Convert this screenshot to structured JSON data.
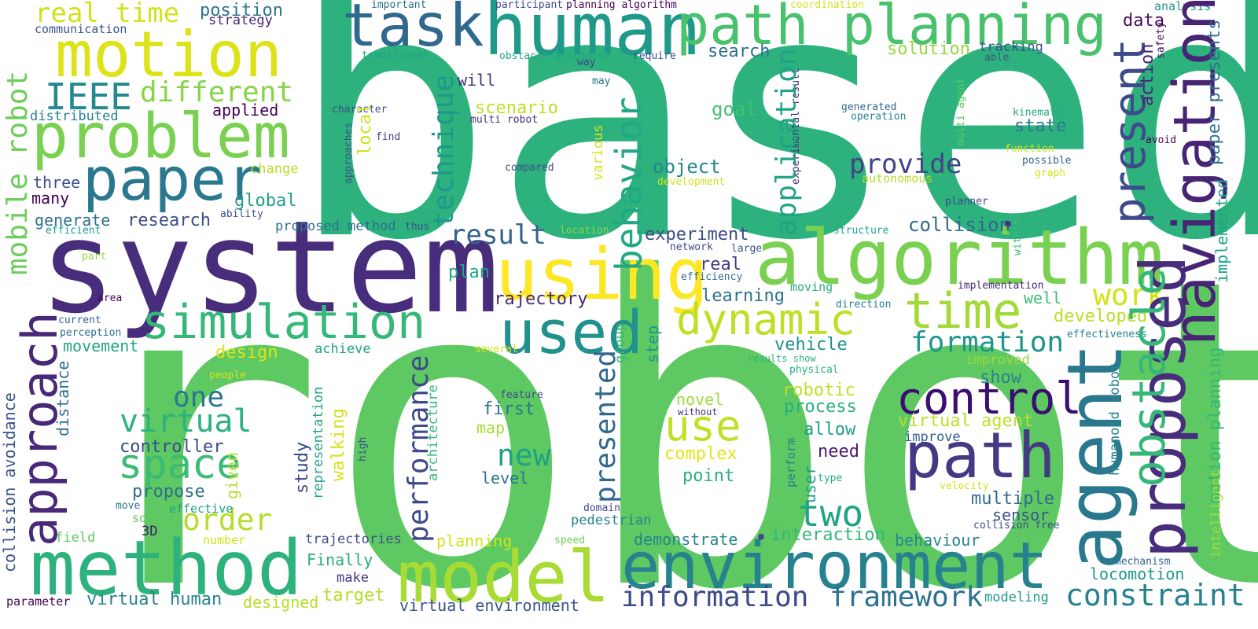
{
  "words": [
    {
      "text": "based",
      "color": "#2db27d"
    },
    {
      "text": "robot",
      "color": "#5ec962"
    },
    {
      "text": "system",
      "color": "#472d7b"
    },
    {
      "text": "human",
      "color": "#1f9a8a"
    },
    {
      "text": "task",
      "color": "#31688e"
    },
    {
      "text": "path planning",
      "color": "#4ac16d"
    },
    {
      "text": "motion",
      "color": "#dde318"
    },
    {
      "text": "problem",
      "color": "#7ad151"
    },
    {
      "text": "paper",
      "color": "#2a788e"
    },
    {
      "text": "IEEE",
      "color": "#23898e"
    },
    {
      "text": "different",
      "color": "#86d549"
    },
    {
      "text": "real time",
      "color": "#d2e21b"
    },
    {
      "text": "algorithm",
      "color": "#7ad151"
    },
    {
      "text": "using",
      "color": "#fde725"
    },
    {
      "text": "simulation",
      "color": "#35b779"
    },
    {
      "text": "used",
      "color": "#21918c"
    },
    {
      "text": "dynamic",
      "color": "#bddf26"
    },
    {
      "text": "time",
      "color": "#a2da37"
    },
    {
      "text": "method",
      "color": "#2db27d"
    },
    {
      "text": "model",
      "color": "#a8db34"
    },
    {
      "text": "environment",
      "color": "#26828e"
    },
    {
      "text": "path",
      "color": "#443983"
    },
    {
      "text": "control",
      "color": "#3b0f70"
    },
    {
      "text": "use",
      "color": "#c0df25"
    },
    {
      "text": "space",
      "color": "#3bbb75"
    },
    {
      "text": "virtual",
      "color": "#2db27d"
    },
    {
      "text": "one",
      "color": "#2a788e"
    },
    {
      "text": "two",
      "color": "#20a386"
    },
    {
      "text": "new",
      "color": "#1fa187"
    },
    {
      "text": "order",
      "color": "#b5de2b"
    },
    {
      "text": "formation",
      "color": "#1f968b"
    },
    {
      "text": "work",
      "color": "#d5e21a"
    },
    {
      "text": "information",
      "color": "#3e4a89"
    },
    {
      "text": "framework",
      "color": "#2c728e"
    },
    {
      "text": "constraint",
      "color": "#26828e"
    },
    {
      "text": "provide",
      "color": "#414487"
    },
    {
      "text": "result",
      "color": "#33638d"
    },
    {
      "text": "search",
      "color": "#2e6f8e"
    },
    {
      "text": "solution",
      "color": "#95d840"
    },
    {
      "text": "tracking",
      "color": "#3b528b"
    },
    {
      "text": "data",
      "color": "#46085c"
    },
    {
      "text": "goal",
      "color": "#44bf70"
    },
    {
      "text": "state",
      "color": "#2a788e"
    },
    {
      "text": "object",
      "color": "#25848e"
    },
    {
      "text": "collision",
      "color": "#31688e"
    },
    {
      "text": "experiment",
      "color": "#3e4a89"
    },
    {
      "text": "real",
      "color": "#443983"
    },
    {
      "text": "trajectory",
      "color": "#482878"
    },
    {
      "text": "learning",
      "color": "#2c728e"
    },
    {
      "text": "plan",
      "color": "#22a884"
    },
    {
      "text": "vehicle",
      "color": "#21918c"
    },
    {
      "text": "developed",
      "color": "#b8de29"
    },
    {
      "text": "well",
      "color": "#3bbb75"
    },
    {
      "text": "show",
      "color": "#25858e"
    },
    {
      "text": "improved",
      "color": "#9bd93c"
    },
    {
      "text": "robotic",
      "color": "#c2df23"
    },
    {
      "text": "process",
      "color": "#27ad81"
    },
    {
      "text": "virtual agent",
      "color": "#bddf26"
    },
    {
      "text": "allow",
      "color": "#1fa088"
    },
    {
      "text": "improve",
      "color": "#355f8d"
    },
    {
      "text": "need",
      "color": "#481a6c"
    },
    {
      "text": "multiple",
      "color": "#30698e"
    },
    {
      "text": "sensor",
      "color": "#3a538b"
    },
    {
      "text": "behaviour",
      "color": "#24868e"
    },
    {
      "text": "interaction",
      "color": "#35b779"
    },
    {
      "text": "demonstrate",
      "color": "#25858e"
    },
    {
      "text": "locomotion",
      "color": "#1e9b8a"
    },
    {
      "text": "modeling",
      "color": "#1f988b"
    },
    {
      "text": "mechanism",
      "color": "#31688e"
    },
    {
      "text": "first",
      "color": "#2b758e"
    },
    {
      "text": "map",
      "color": "#a5db36"
    },
    {
      "text": "level",
      "color": "#2c728e"
    },
    {
      "text": "novel",
      "color": "#a0da39"
    },
    {
      "text": "point",
      "color": "#2ab07f"
    },
    {
      "text": "complex",
      "color": "#e2e418"
    },
    {
      "text": "controller",
      "color": "#3e4a89"
    },
    {
      "text": "propose",
      "color": "#2e6e8e"
    },
    {
      "text": "movement",
      "color": "#20a486"
    },
    {
      "text": "design",
      "color": "#dde318"
    },
    {
      "text": "achieve",
      "color": "#1fa287"
    },
    {
      "text": "global",
      "color": "#1f9e89"
    },
    {
      "text": "research",
      "color": "#3d4d8a"
    },
    {
      "text": "generate",
      "color": "#2c728e"
    },
    {
      "text": "three",
      "color": "#3d4e8a"
    },
    {
      "text": "many",
      "color": "#440154"
    },
    {
      "text": "change",
      "color": "#b5de2b"
    },
    {
      "text": "applied",
      "color": "#440154"
    },
    {
      "text": "distributed",
      "color": "#26828e"
    },
    {
      "text": "communication",
      "color": "#39568c"
    },
    {
      "text": "position",
      "color": "#2b758e"
    },
    {
      "text": "strategy",
      "color": "#482878"
    },
    {
      "text": "proposed method",
      "color": "#2d708e"
    },
    {
      "text": "efficient",
      "color": "#1f9a8a"
    },
    {
      "text": "ability",
      "color": "#3b528b"
    },
    {
      "text": "thus",
      "color": "#3d4d8a"
    },
    {
      "text": "location",
      "color": "#86d549"
    },
    {
      "text": "structure",
      "color": "#20a386"
    },
    {
      "text": "network",
      "color": "#3e4989"
    },
    {
      "text": "large",
      "color": "#3a538b"
    },
    {
      "text": "efficiency",
      "color": "#2c728e"
    },
    {
      "text": "moving",
      "color": "#27ad81"
    },
    {
      "text": "direction",
      "color": "#287c8e"
    },
    {
      "text": "implementation",
      "color": "#482878"
    },
    {
      "text": "effectiveness",
      "color": "#25858e"
    },
    {
      "text": "results show",
      "color": "#2db27d"
    },
    {
      "text": "physical",
      "color": "#2ab07f"
    },
    {
      "text": "feature",
      "color": "#3e4a89"
    },
    {
      "text": "without",
      "color": "#46327e"
    },
    {
      "text": "step",
      "color": "#1f988b"
    },
    {
      "text": "group",
      "color": "#35b779"
    },
    {
      "text": "pedestrian",
      "color": "#26828e"
    },
    {
      "text": "domain",
      "color": "#414487"
    },
    {
      "text": "effective",
      "color": "#1fa088"
    },
    {
      "text": "move",
      "color": "#2d708e"
    },
    {
      "text": "solve",
      "color": "#5ec962"
    },
    {
      "text": "3D",
      "color": "#481668"
    },
    {
      "text": "field",
      "color": "#5ec962"
    },
    {
      "text": "number",
      "color": "#d5e21a"
    },
    {
      "text": "trajectories",
      "color": "#3d4e8a"
    },
    {
      "text": "planning",
      "color": "#d2e21b"
    },
    {
      "text": "speed",
      "color": "#6ccd5a"
    },
    {
      "text": "Finally",
      "color": "#27ad81"
    },
    {
      "text": "make",
      "color": "#443983"
    },
    {
      "text": "target",
      "color": "#b5de2b"
    },
    {
      "text": "virtual human",
      "color": "#26828e"
    },
    {
      "text": "designed",
      "color": "#b8de29"
    },
    {
      "text": "parameter",
      "color": "#440154"
    },
    {
      "text": "virtual environment",
      "color": "#3b528b"
    },
    {
      "text": "velocity",
      "color": "#d2e21b"
    },
    {
      "text": "type",
      "color": "#22a884"
    },
    {
      "text": "collision free",
      "color": "#3e4a89"
    },
    {
      "text": "people",
      "color": "#d2e21b"
    },
    {
      "text": "several",
      "color": "#d5e21a"
    },
    {
      "text": "area",
      "color": "#440154"
    },
    {
      "text": "current",
      "color": "#33638d"
    },
    {
      "text": "perception",
      "color": "#2e6f8e"
    },
    {
      "text": "part",
      "color": "#95d840"
    },
    {
      "text": "important",
      "color": "#2c728e"
    },
    {
      "text": "participant",
      "color": "#3e4a89"
    },
    {
      "text": "planning algorithm",
      "color": "#440154"
    },
    {
      "text": "coordination",
      "color": "#d5e21a"
    },
    {
      "text": "analysis",
      "color": "#21918c"
    },
    {
      "text": "traditional",
      "color": "#1fa187"
    },
    {
      "text": "obstacle avoidance",
      "color": "#22a884"
    },
    {
      "text": "require",
      "color": "#3b528b"
    },
    {
      "text": "may",
      "color": "#2c728e"
    },
    {
      "text": "way",
      "color": "#414487"
    },
    {
      "text": "will",
      "color": "#46327e"
    },
    {
      "text": "scenario",
      "color": "#bddf26"
    },
    {
      "text": "character",
      "color": "#3b528b"
    },
    {
      "text": "multi robot",
      "color": "#46327e"
    },
    {
      "text": "find",
      "color": "#414487"
    },
    {
      "text": "compared",
      "color": "#3b528b"
    },
    {
      "text": "development",
      "color": "#d2e21b"
    },
    {
      "text": "generated",
      "color": "#31688e"
    },
    {
      "text": "operation",
      "color": "#25858e"
    },
    {
      "text": "kinematic",
      "color": "#22a884"
    },
    {
      "text": "function",
      "color": "#d5e21a"
    },
    {
      "text": "possible",
      "color": "#31688e"
    },
    {
      "text": "graph",
      "color": "#d2e21b"
    },
    {
      "text": "autonomous",
      "color": "#b5de2b"
    },
    {
      "text": "planner",
      "color": "#3e4a89"
    },
    {
      "text": "able",
      "color": "#3b528b"
    },
    {
      "text": "avoid",
      "color": "#440154"
    },
    {
      "text": "agent",
      "color": "#2a788e"
    },
    {
      "text": "proposed",
      "color": "#472d7b"
    },
    {
      "text": "navigation",
      "color": "#482475"
    },
    {
      "text": "obstacle",
      "color": "#35b779"
    },
    {
      "text": "present",
      "color": "#3e4a89"
    },
    {
      "text": "action",
      "color": "#482475"
    },
    {
      "text": "paper presents",
      "color": "#2d708e"
    },
    {
      "text": "implemented",
      "color": "#1fa287"
    },
    {
      "text": "motion planning",
      "color": "#35b779"
    },
    {
      "text": "intelligent",
      "color": "#a2da37"
    },
    {
      "text": "humanoid robot",
      "color": "#26828e"
    },
    {
      "text": "safety",
      "color": "#471063"
    },
    {
      "text": "within",
      "color": "#3bbb75"
    },
    {
      "text": "multi agent",
      "color": "#5ec962"
    },
    {
      "text": "experimental result",
      "color": "#482878"
    },
    {
      "text": "application",
      "color": "#20a386"
    },
    {
      "text": "behavior",
      "color": "#22a884"
    },
    {
      "text": "technique",
      "color": "#1f988b"
    },
    {
      "text": "local",
      "color": "#d2e21b"
    },
    {
      "text": "various",
      "color": "#d5e21a"
    },
    {
      "text": "approaches",
      "color": "#3b528b"
    },
    {
      "text": "presented",
      "color": "#31688e"
    },
    {
      "text": "performance",
      "color": "#3e4a89"
    },
    {
      "text": "architecture",
      "color": "#35b779"
    },
    {
      "text": "study",
      "color": "#3e4a89"
    },
    {
      "text": "representation",
      "color": "#20a386"
    },
    {
      "text": "walking",
      "color": "#d5e21a"
    },
    {
      "text": "high",
      "color": "#3b528b"
    },
    {
      "text": "given",
      "color": "#b5de2b"
    },
    {
      "text": "user",
      "color": "#1f9e89"
    },
    {
      "text": "perform",
      "color": "#26828e"
    },
    {
      "text": "approach",
      "color": "#482878"
    },
    {
      "text": "mobile robot",
      "color": "#6ccd5a"
    },
    {
      "text": "collision avoidance",
      "color": "#3b528b"
    },
    {
      "text": "distance",
      "color": "#2d708e"
    }
  ]
}
